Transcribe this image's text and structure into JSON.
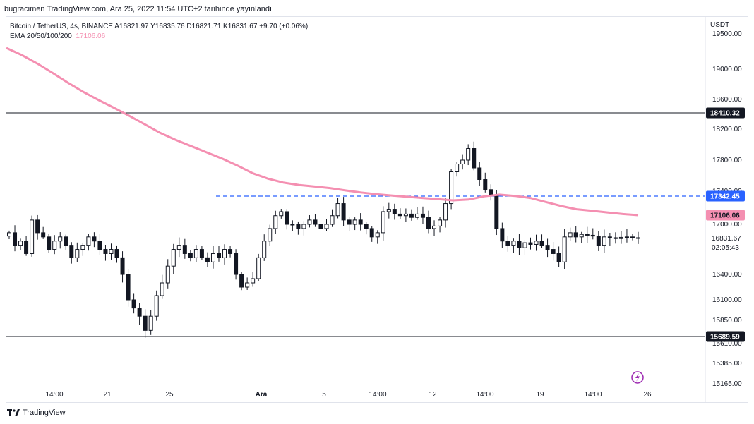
{
  "header": {
    "published": "bugracimen TradingView.com, Ara 25, 2022 11:54 UTC+2 tarihinde yayınlandı"
  },
  "legend": {
    "symbol_line": "Bitcoin / TetherUS, 4s, BINANCE  A16821.97  Y16835.76  D16821.71  K16831.67  +9.70 (+0.06%)",
    "ema_label": "EMA 20/50/100/200",
    "ema_value": "17106.06"
  },
  "currency": "USDT",
  "footer": {
    "brand": "TradingView"
  },
  "colors": {
    "ema": "#f48fb1",
    "hline": "#131722",
    "dashed": "#2962ff",
    "candle": "#131722",
    "bolt": "#9c27b0"
  },
  "chart_data": {
    "type": "candlestick",
    "y_tick_labels": [
      "19500.00",
      "19000.00",
      "18600.00",
      "18200.00",
      "17800.00",
      "17400.00",
      "17000.00",
      "16400.00",
      "16100.00",
      "15850.00",
      "15610.00",
      "15385.00",
      "15165.00"
    ],
    "y_tick_values": [
      19500,
      19000,
      18600,
      18200,
      17800,
      17400,
      17000,
      16400,
      16100,
      15850,
      15610,
      15385,
      15165
    ],
    "x_tick_labels": [
      "14:00",
      "21",
      "25",
      "Ara",
      "5",
      "14:00",
      "12",
      "14:00",
      "19",
      "14:00",
      "26"
    ],
    "horizontal_lines": [
      {
        "value": 18410.32,
        "label": "18410.32",
        "style": "solid"
      },
      {
        "value": 15689.59,
        "label": "15689.59",
        "style": "solid"
      },
      {
        "value": 17342.45,
        "label": "17342.45",
        "style": "dashed"
      }
    ],
    "current_price": {
      "value": 16831.67,
      "label": "16831.67",
      "countdown": "02:05:43"
    },
    "ema": {
      "name": "EMA 20/50/100/200",
      "last": 17106.06,
      "values": [
        19300,
        19200,
        19080,
        18950,
        18820,
        18700,
        18590,
        18480,
        18370,
        18260,
        18150,
        18060,
        17980,
        17900,
        17820,
        17730,
        17630,
        17560,
        17510,
        17480,
        17460,
        17440,
        17410,
        17385,
        17365,
        17350,
        17335,
        17320,
        17305,
        17290,
        17300,
        17340,
        17360,
        17345,
        17320,
        17270,
        17220,
        17180,
        17160,
        17140,
        17120,
        17106
      ]
    },
    "candles": {
      "close": [
        16900,
        16750,
        16800,
        16650,
        17050,
        16900,
        16850,
        16700,
        16800,
        16850,
        16750,
        16600,
        16700,
        16750,
        16850,
        16800,
        16700,
        16650,
        16700,
        16600,
        16400,
        16100,
        16000,
        15900,
        15750,
        15900,
        16150,
        16300,
        16500,
        16700,
        16750,
        16650,
        16600,
        16700,
        16600,
        16550,
        16650,
        16600,
        16700,
        16650,
        16400,
        16250,
        16300,
        16350,
        16600,
        16800,
        16950,
        17100,
        17150,
        17000,
        17000,
        16950,
        17000,
        17050,
        17000,
        16950,
        17000,
        17100,
        17250,
        17050,
        17000,
        17050,
        17000,
        16950,
        16850,
        16900,
        17150,
        17180,
        17120,
        17100,
        17120,
        17080,
        17120,
        17080,
        16950,
        16980,
        17050,
        17250,
        17650,
        17750,
        17800,
        17950,
        17700,
        17550,
        17420,
        17350,
        16950,
        16800,
        16750,
        16800,
        16720,
        16780,
        16760,
        16800,
        16750,
        16700,
        16650,
        16550,
        16850,
        16900,
        16850,
        16880,
        16870,
        16860,
        16750,
        16850,
        16840,
        16830,
        16845,
        16850,
        16840,
        16832
      ]
    }
  }
}
